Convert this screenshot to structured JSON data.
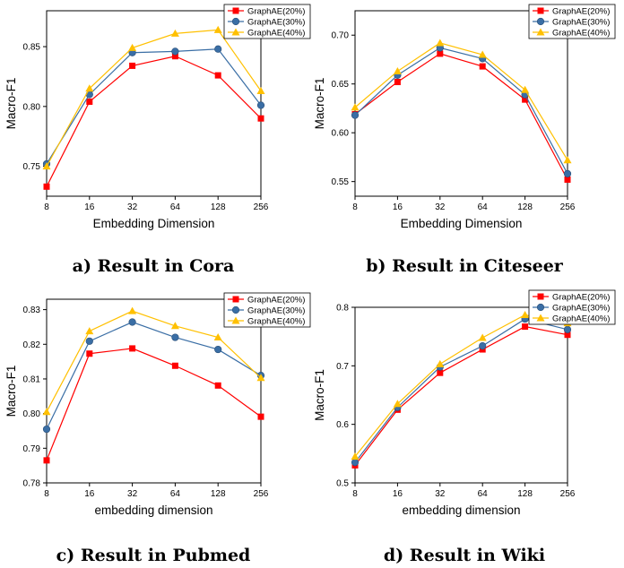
{
  "chart_data": [
    {
      "type": "line",
      "caption": "a) Result in Cora",
      "xlabel": "Embedding Dimension",
      "ylabel": "Macro-F1",
      "x": [
        8,
        16,
        32,
        64,
        128,
        256
      ],
      "x_scale": "log2",
      "ylim": [
        0.725,
        0.88
      ],
      "yticks": [
        "0.75",
        "0.80",
        "0.85"
      ],
      "legend_position": "top-right",
      "grid": false,
      "series": [
        {
          "name": "GraphAE(20%)",
          "color": "#ff0000",
          "marker": "square",
          "values": [
            0.733,
            0.804,
            0.834,
            0.842,
            0.826,
            0.79
          ]
        },
        {
          "name": "GraphAE(30%)",
          "color": "#3a6ea5",
          "marker": "circle",
          "values": [
            0.752,
            0.81,
            0.845,
            0.846,
            0.848,
            0.801
          ]
        },
        {
          "name": "GraphAE(40%)",
          "color": "#ffc000",
          "marker": "triangle",
          "values": [
            0.75,
            0.815,
            0.849,
            0.861,
            0.864,
            0.813
          ]
        }
      ]
    },
    {
      "type": "line",
      "caption": "b) Result in Citeseer",
      "xlabel": "Embedding Dimension",
      "ylabel": "Macro-F1",
      "x": [
        8,
        16,
        32,
        64,
        128,
        256
      ],
      "x_scale": "log2",
      "ylim": [
        0.535,
        0.725
      ],
      "yticks": [
        "0.55",
        "0.60",
        "0.65",
        "0.70"
      ],
      "legend_position": "top-right",
      "grid": false,
      "series": [
        {
          "name": "GraphAE(20%)",
          "color": "#ff0000",
          "marker": "square",
          "values": [
            0.619,
            0.652,
            0.681,
            0.668,
            0.634,
            0.552
          ]
        },
        {
          "name": "GraphAE(30%)",
          "color": "#3a6ea5",
          "marker": "circle",
          "values": [
            0.618,
            0.659,
            0.687,
            0.676,
            0.639,
            0.558
          ]
        },
        {
          "name": "GraphAE(40%)",
          "color": "#ffc000",
          "marker": "triangle",
          "values": [
            0.626,
            0.663,
            0.692,
            0.68,
            0.644,
            0.572
          ]
        }
      ]
    },
    {
      "type": "line",
      "caption": "c) Result in Pubmed",
      "xlabel": "embedding dimension",
      "ylabel": "Macro-F1",
      "x": [
        8,
        16,
        32,
        64,
        128,
        256
      ],
      "x_scale": "log2",
      "ylim": [
        0.78,
        0.833
      ],
      "yticks": [
        "0.78",
        "0.79",
        "0.80",
        "0.81",
        "0.82",
        "0.83"
      ],
      "legend_position": "top-right",
      "grid": false,
      "series": [
        {
          "name": "GraphAE(20%)",
          "color": "#ff0000",
          "marker": "square",
          "values": [
            0.7865,
            0.8173,
            0.8188,
            0.8138,
            0.8081,
            0.7991
          ]
        },
        {
          "name": "GraphAE(30%)",
          "color": "#3a6ea5",
          "marker": "circle",
          "values": [
            0.7955,
            0.8209,
            0.8264,
            0.822,
            0.8185,
            0.811
          ]
        },
        {
          "name": "GraphAE(40%)",
          "color": "#ffc000",
          "marker": "triangle",
          "values": [
            0.8005,
            0.8238,
            0.8296,
            0.8253,
            0.822,
            0.8103
          ]
        }
      ]
    },
    {
      "type": "line",
      "caption": "d) Result in Wiki",
      "xlabel": "embedding dimension",
      "ylabel": "Macro-F1",
      "x": [
        8,
        16,
        32,
        64,
        128,
        256
      ],
      "x_scale": "log2",
      "ylim": [
        0.5,
        0.8
      ],
      "yticks": [
        "0.5",
        "0.6",
        "0.7",
        "0.8"
      ],
      "legend_position": "top-right",
      "grid": false,
      "series": [
        {
          "name": "GraphAE(20%)",
          "color": "#ff0000",
          "marker": "square",
          "values": [
            0.53,
            0.625,
            0.688,
            0.728,
            0.767,
            0.753
          ]
        },
        {
          "name": "GraphAE(30%)",
          "color": "#3a6ea5",
          "marker": "circle",
          "values": [
            0.535,
            0.629,
            0.698,
            0.734,
            0.78,
            0.762
          ]
        },
        {
          "name": "GraphAE(40%)",
          "color": "#ffc000",
          "marker": "triangle",
          "values": [
            0.545,
            0.635,
            0.703,
            0.748,
            0.787,
            0.773
          ]
        }
      ]
    }
  ]
}
